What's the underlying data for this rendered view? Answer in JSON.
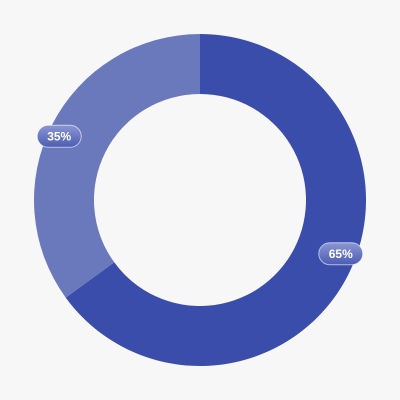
{
  "chart_data": {
    "type": "pie",
    "donut": true,
    "values": [
      65,
      35
    ],
    "value_labels": [
      "65%",
      "35%"
    ],
    "colors": [
      "#3a4dab",
      "#6979bb"
    ]
  }
}
